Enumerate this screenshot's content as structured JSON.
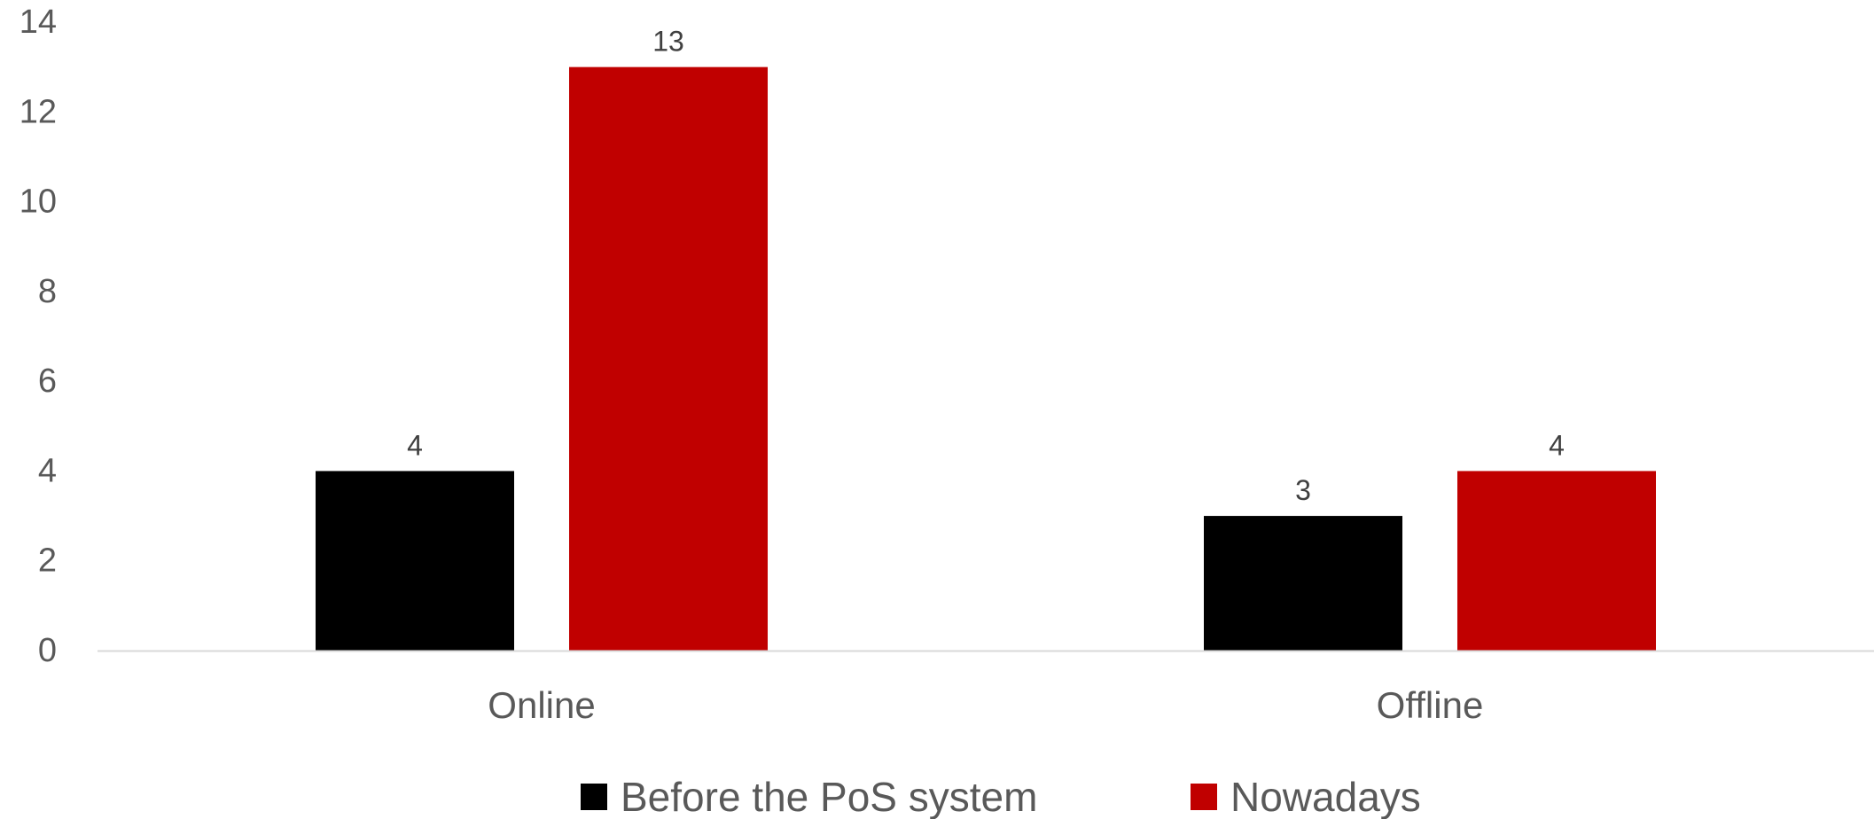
{
  "chart_data": {
    "type": "bar",
    "categories": [
      "Online",
      "Offline"
    ],
    "series": [
      {
        "name": "Before the PoS system",
        "values": [
          4,
          3
        ],
        "color": "#000000"
      },
      {
        "name": "Nowadays",
        "values": [
          13,
          4
        ],
        "color": "#C00000"
      }
    ],
    "ylim": [
      0,
      14
    ],
    "yticks": [
      0,
      2,
      4,
      6,
      8,
      10,
      12,
      14
    ],
    "grid": false,
    "legend": "bottom",
    "data_labels": true,
    "axis_color": "#D9D9D9"
  }
}
